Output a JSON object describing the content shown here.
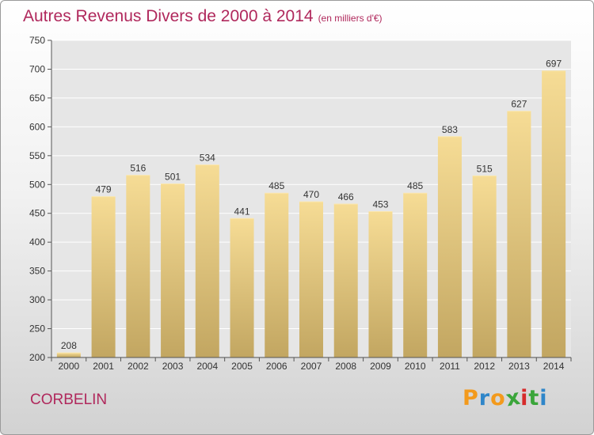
{
  "title": "Autres Revenus Divers de 2000 à 2014",
  "subtitle": "(en milliers d'€)",
  "commune": "CORBELIN",
  "brand": {
    "letters": [
      "P",
      "r",
      "o",
      "x",
      "i",
      "t",
      "i"
    ],
    "colors": [
      "#f39a1c",
      "#2f86c9",
      "#f39a1c",
      "#3aa53a",
      "#d62b2b",
      "#3aa53a",
      "#2f86c9"
    ]
  },
  "colors": {
    "bar_top": "#f6dc95",
    "bar_bottom": "#c2a661",
    "title": "#b0285c",
    "grid": "#ffffff"
  },
  "chart_data": {
    "type": "bar",
    "title": "Autres Revenus Divers de 2000 à 2014",
    "categories": [
      "2000",
      "2001",
      "2002",
      "2003",
      "2004",
      "2005",
      "2006",
      "2007",
      "2008",
      "2009",
      "2010",
      "2011",
      "2012",
      "2013",
      "2014"
    ],
    "values": [
      208,
      479,
      516,
      501,
      534,
      441,
      485,
      470,
      466,
      453,
      485,
      583,
      515,
      627,
      697
    ],
    "ylim": [
      200,
      750
    ],
    "yticks": [
      200,
      250,
      300,
      350,
      400,
      450,
      500,
      550,
      600,
      650,
      700,
      750
    ],
    "grid": true,
    "data_labels": true
  }
}
